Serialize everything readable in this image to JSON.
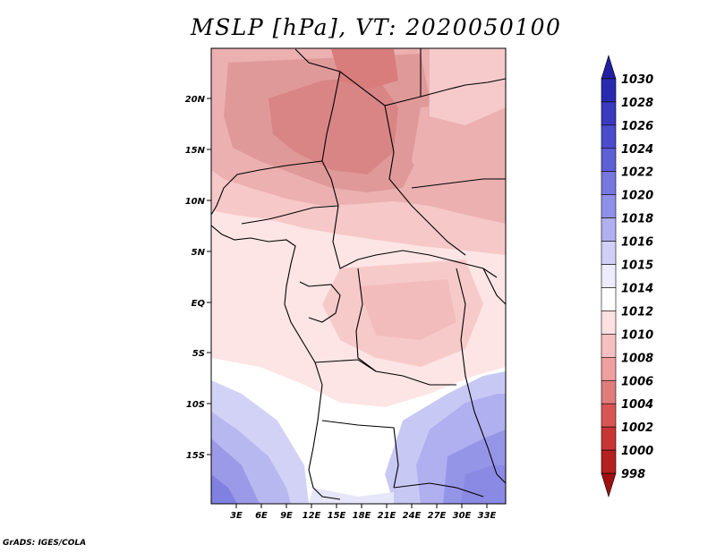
{
  "title": "MSLP [hPa], VT: 2020050100",
  "credit": "GrADS: IGES/COLA",
  "map": {
    "lat_labels": [
      "20N",
      "15N",
      "10N",
      "5N",
      "EQ",
      "5S",
      "10S",
      "15S"
    ],
    "lon_labels": [
      "3E",
      "6E",
      "9E",
      "12E",
      "15E",
      "18E",
      "21E",
      "24E",
      "27E",
      "30E",
      "33E"
    ],
    "pressure_field_description": "Lower pressure (1004-1010 hPa) over the Sahel, higher pressure (1016-1024 hPa) over southern Africa"
  },
  "colorbar": {
    "levels": [
      "1030",
      "1028",
      "1026",
      "1024",
      "1022",
      "1020",
      "1018",
      "1016",
      "1015",
      "1014",
      "1012",
      "1010",
      "1008",
      "1006",
      "1004",
      "1002",
      "1000",
      "998"
    ],
    "colors": [
      "#2020a0",
      "#2a2ab0",
      "#3a3ac0",
      "#4b4bcc",
      "#5f5fd6",
      "#7777e0",
      "#9090e8",
      "#b0b0f0",
      "#d0d0f6",
      "#ececfc",
      "#ffffff",
      "#fde0e0",
      "#f7c0c0",
      "#ef9f9f",
      "#e07c7c",
      "#d95555",
      "#c93535",
      "#b52020",
      "#a01010"
    ]
  }
}
